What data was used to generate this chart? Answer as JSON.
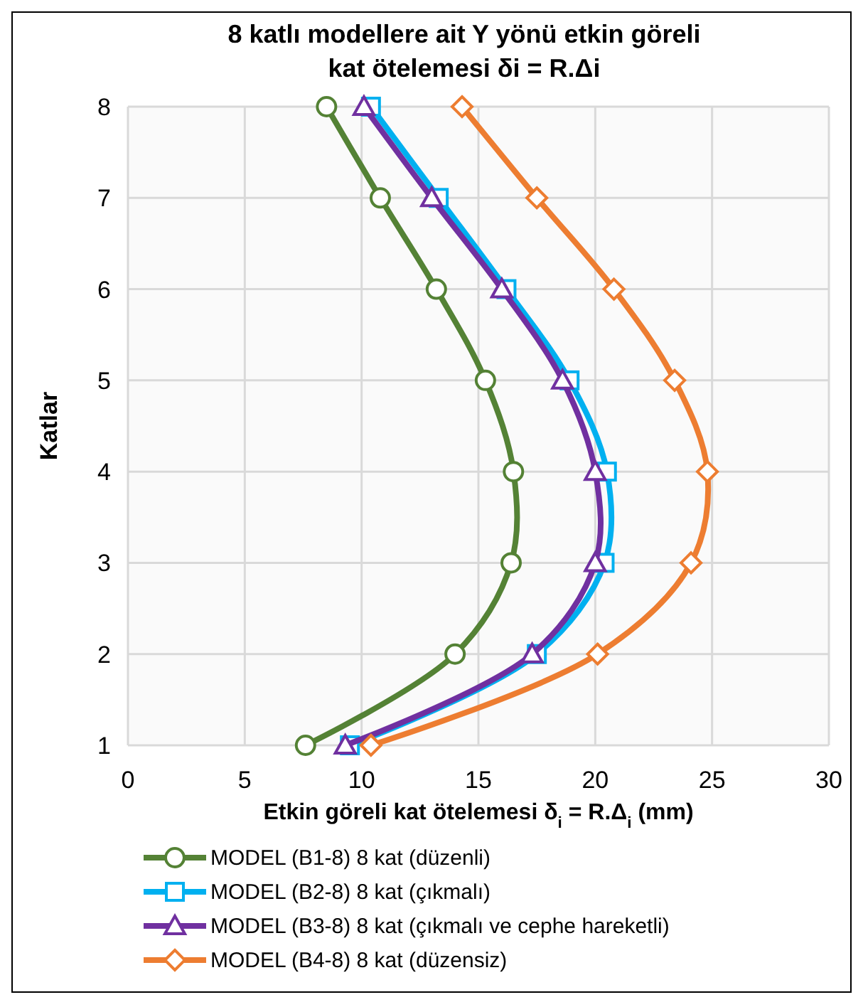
{
  "chart_data": {
    "type": "line",
    "title": "8 katlı modellere ait Y yönü etkin göreli kat ötelemesi δi = R.Δi",
    "xlabel": "Etkin göreli kat ötelemesi  δ$_{i}$ = R.Δ$_{i}$ (mm)",
    "ylabel": "Katlar",
    "xlim": [
      0,
      30
    ],
    "xticks": [
      0,
      5,
      10,
      15,
      20,
      25,
      30
    ],
    "ylim": [
      1,
      8
    ],
    "yticks": [
      1,
      2,
      3,
      4,
      5,
      6,
      7,
      8
    ],
    "grid": true,
    "legend": "bottom",
    "series": [
      {
        "name": "MODEL (B1-8) 8 kat (düzenli)",
        "color": "#548235",
        "marker": "circle",
        "x": [
          7.6,
          14.0,
          16.4,
          16.5,
          15.3,
          13.2,
          10.8,
          8.5
        ],
        "values": [
          1,
          2,
          3,
          4,
          5,
          6,
          7,
          8
        ]
      },
      {
        "name": "MODEL (B2-8) 8 kat (çıkmalı)",
        "color": "#00b0f0",
        "marker": "square",
        "x": [
          9.5,
          17.5,
          20.4,
          20.5,
          18.9,
          16.2,
          13.3,
          10.4
        ],
        "values": [
          1,
          2,
          3,
          4,
          5,
          6,
          7,
          8
        ]
      },
      {
        "name": "MODEL (B3-8) 8 kat (çıkmalı ve cephe hareketli)",
        "color": "#7030a0",
        "marker": "triangle",
        "x": [
          9.3,
          17.3,
          20.0,
          20.0,
          18.6,
          16.0,
          13.0,
          10.1
        ],
        "values": [
          1,
          2,
          3,
          4,
          5,
          6,
          7,
          8
        ]
      },
      {
        "name": "MODEL (B4-8) 8 kat (düzensiz)",
        "color": "#ed7d31",
        "marker": "diamond",
        "x": [
          10.4,
          20.1,
          24.1,
          24.8,
          23.4,
          20.8,
          17.5,
          14.3
        ],
        "values": [
          1,
          2,
          3,
          4,
          5,
          6,
          7,
          8
        ]
      }
    ]
  }
}
